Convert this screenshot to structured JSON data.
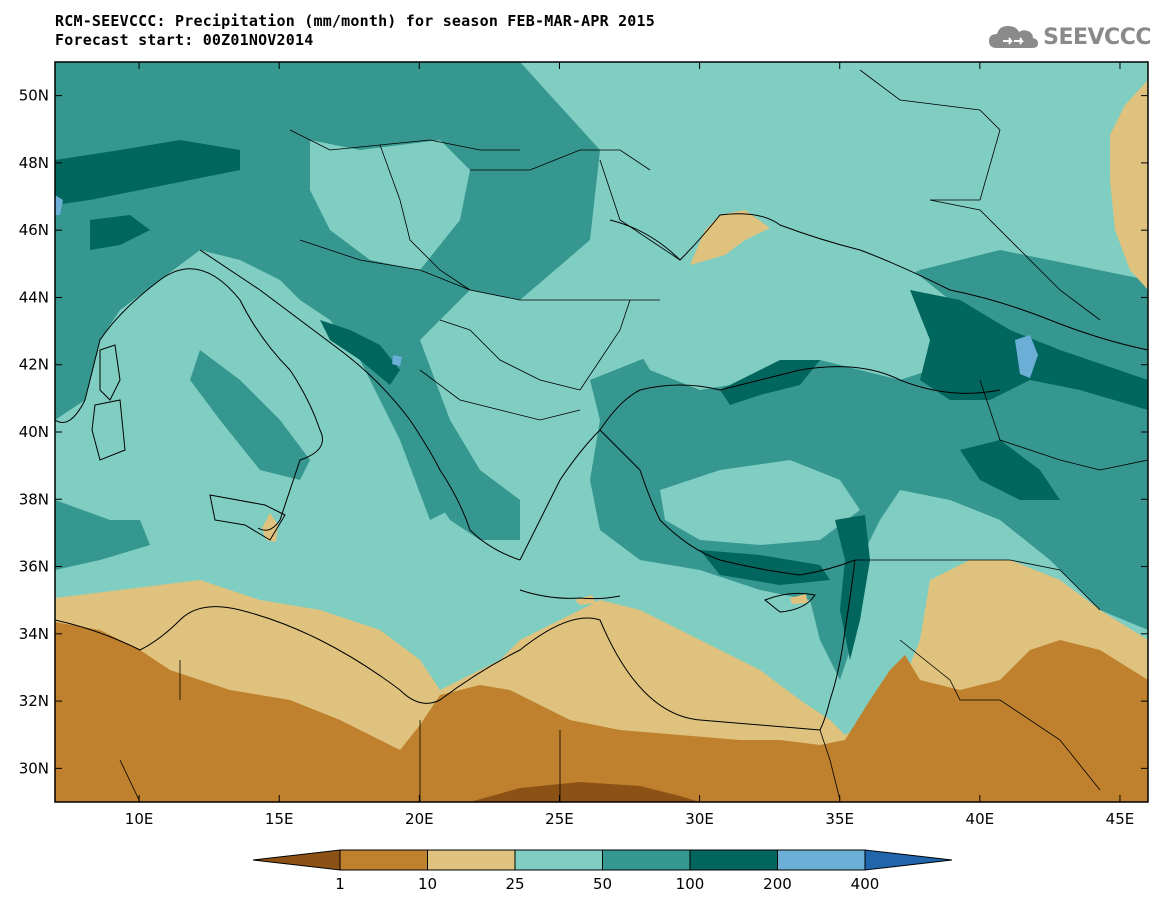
{
  "header": {
    "title_line1": "RCM-SEEVCCC: Precipitation (mm/month) for season FEB-MAR-APR 2015",
    "title_line2": "Forecast start: 00Z01NOV2014"
  },
  "logo": {
    "text": "SEEVCCC",
    "icon": "cloud-icon"
  },
  "map": {
    "lon_range": [
      7,
      46
    ],
    "lat_range": [
      29,
      51
    ],
    "lat_ticks": [
      "50N",
      "48N",
      "46N",
      "44N",
      "42N",
      "40N",
      "38N",
      "36N",
      "34N",
      "32N",
      "30N"
    ],
    "lon_ticks": [
      "10E",
      "15E",
      "20E",
      "25E",
      "30E",
      "35E",
      "40E",
      "45E"
    ]
  },
  "legend": {
    "thresholds": [
      "1",
      "10",
      "25",
      "50",
      "100",
      "200",
      "400"
    ],
    "colors": [
      "#8c5114",
      "#bf812d",
      "#dfc27d",
      "#80cdc1",
      "#35978f",
      "#01665e",
      "#6baed6",
      "#2166ac"
    ]
  }
}
